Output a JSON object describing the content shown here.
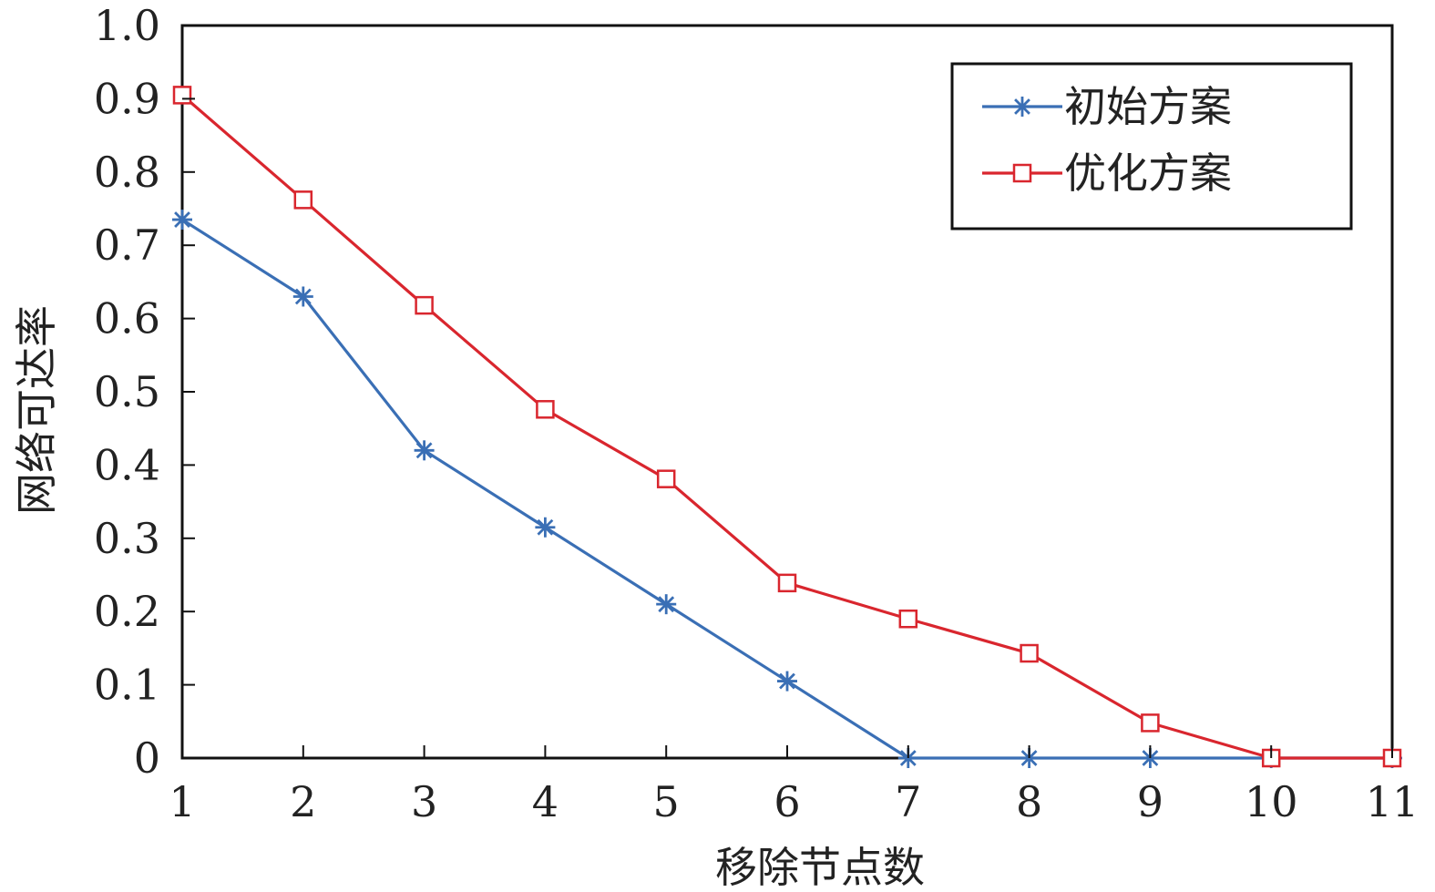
{
  "chart_data": {
    "type": "line",
    "xlabel": "移除节点数",
    "ylabel": "网络可达率",
    "x": [
      1,
      2,
      3,
      4,
      5,
      6,
      7,
      8,
      9,
      10,
      11
    ],
    "xlim": [
      1,
      11
    ],
    "ylim": [
      0,
      1.0
    ],
    "xticks": [
      "1",
      "2",
      "3",
      "4",
      "5",
      "6",
      "7",
      "8",
      "9",
      "10",
      "11"
    ],
    "yticks": [
      "0",
      "0.1",
      "0.2",
      "0.3",
      "0.4",
      "0.5",
      "0.6",
      "0.7",
      "0.8",
      "0.9",
      "1.0"
    ],
    "grid": false,
    "legend_position": "top-right",
    "series": [
      {
        "name": "初始方案",
        "color": "#3a6fb5",
        "marker": "asterisk",
        "values": [
          0.735,
          0.63,
          0.42,
          0.315,
          0.21,
          0.105,
          0,
          0,
          0,
          0,
          0
        ]
      },
      {
        "name": "优化方案",
        "color": "#d9262e",
        "marker": "square",
        "values": [
          0.905,
          0.762,
          0.618,
          0.476,
          0.381,
          0.239,
          0.19,
          0.143,
          0.048,
          0,
          0
        ]
      }
    ]
  }
}
